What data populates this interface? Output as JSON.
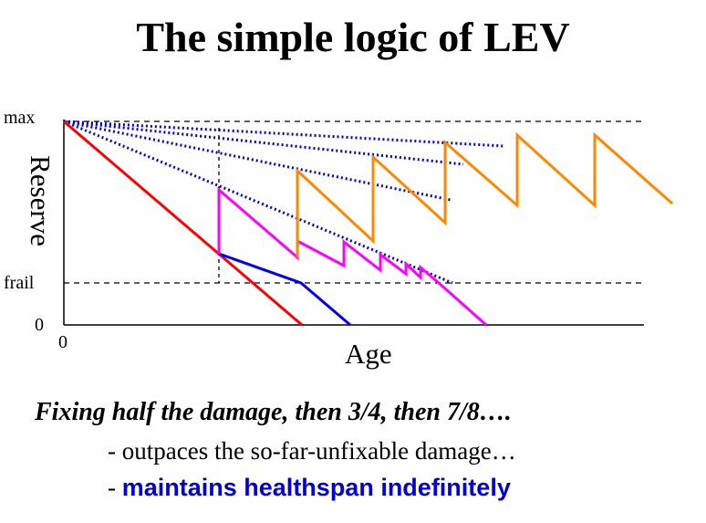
{
  "title": "The simple logic of LEV",
  "axes": {
    "y_title": "Reserve",
    "x_title": "Age",
    "y_ticks": {
      "max": "max",
      "frail": "frail",
      "zero": "0"
    },
    "x_zero": "0"
  },
  "caption": {
    "heading": "Fixing half the damage, then 3/4, then 7/8….",
    "line1": "- outpaces the so-far-unfixable damage…",
    "line2_prefix": "- ",
    "line2_emphasis": "maintains healthspan indefinitely"
  },
  "colors": {
    "no_intervention": "#ff0000",
    "first_fix_only": "#0000ee",
    "two_fixes": "#ff00ff",
    "lev": "#ff8800",
    "unfixable_trend": "#0000dd"
  }
}
